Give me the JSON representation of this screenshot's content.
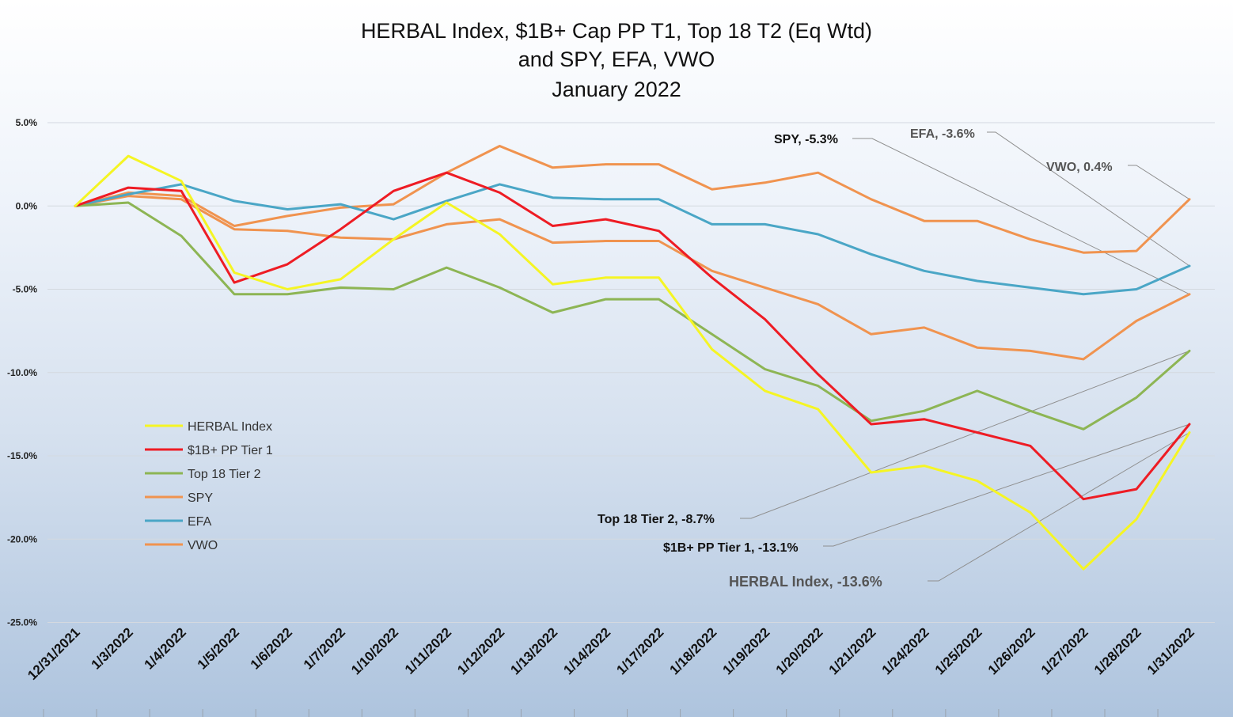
{
  "chart_data": {
    "type": "line",
    "title": [
      "HERBAL Index, $1B+ Cap PP T1, Top 18 T2  (Eq Wtd)",
      "and SPY, EFA, VWO",
      "January 2022"
    ],
    "xlabel": "",
    "ylabel": "",
    "ylim": [
      -25,
      5
    ],
    "yticks": [
      5,
      0,
      -5,
      -10,
      -15,
      -20,
      -25
    ],
    "ytick_labels": [
      "5.0%",
      "0.0%",
      "-5.0%",
      "-10.0%",
      "-15.0%",
      "-20.0%",
      "-25.0%"
    ],
    "grid": "horizontal",
    "legend_position": "center-left",
    "categories": [
      "12/31/2021",
      "1/3/2022",
      "1/4/2022",
      "1/5/2022",
      "1/6/2022",
      "1/7/2022",
      "1/10/2022",
      "1/11/2022",
      "1/12/2022",
      "1/13/2022",
      "1/14/2022",
      "1/17/2022",
      "1/18/2022",
      "1/19/2022",
      "1/20/2022",
      "1/21/2022",
      "1/24/2022",
      "1/25/2022",
      "1/26/2022",
      "1/27/2022",
      "1/28/2022",
      "1/31/2022"
    ],
    "series": [
      {
        "name": "VWO",
        "color": "#f0934f",
        "values": [
          0.0,
          0.8,
          0.6,
          -1.2,
          -0.6,
          -0.1,
          0.1,
          2.0,
          3.6,
          2.3,
          2.5,
          2.5,
          1.0,
          1.4,
          2.0,
          0.4,
          -0.9,
          -0.9,
          -2.0,
          -2.8,
          -2.7,
          0.4
        ]
      },
      {
        "name": "SPY",
        "color": "#f0934f",
        "values": [
          0.0,
          0.6,
          0.4,
          -1.4,
          -1.5,
          -1.9,
          -2.0,
          -1.1,
          -0.8,
          -2.2,
          -2.1,
          -2.1,
          -3.9,
          -4.9,
          -5.9,
          -7.7,
          -7.3,
          -8.5,
          -8.7,
          -9.2,
          -6.9,
          -5.3
        ]
      },
      {
        "name": "EFA",
        "color": "#4aa6c6",
        "values": [
          0.0,
          0.7,
          1.3,
          0.3,
          -0.2,
          0.1,
          -0.8,
          0.3,
          1.3,
          0.5,
          0.4,
          0.4,
          -1.1,
          -1.1,
          -1.7,
          -2.9,
          -3.9,
          -4.5,
          -4.9,
          -5.3,
          -5.0,
          -3.6
        ]
      },
      {
        "name": "Top 18 Tier 2",
        "color": "#8db554",
        "values": [
          0.0,
          0.2,
          -1.8,
          -5.3,
          -5.3,
          -4.9,
          -5.0,
          -3.7,
          -4.9,
          -6.4,
          -5.6,
          -5.6,
          -7.7,
          -9.8,
          -10.8,
          -12.9,
          -12.3,
          -11.1,
          -12.3,
          -13.4,
          -11.5,
          -8.7
        ]
      },
      {
        "name": "$1B+ PP Tier 1",
        "color": "#ee1c24",
        "values": [
          0.0,
          1.1,
          0.9,
          -4.6,
          -3.5,
          -1.4,
          0.9,
          2.0,
          0.8,
          -1.2,
          -0.8,
          -1.5,
          -4.3,
          -6.8,
          -10.1,
          -13.1,
          -12.8,
          -13.6,
          -14.4,
          -17.6,
          -17.0,
          -13.1
        ]
      },
      {
        "name": "HERBAL Index",
        "color": "#f5f524",
        "values": [
          0.0,
          3.0,
          1.5,
          -4.0,
          -5.0,
          -4.4,
          -2.0,
          0.2,
          -1.7,
          -4.7,
          -4.3,
          -4.3,
          -8.6,
          -11.1,
          -12.2,
          -16.0,
          -15.6,
          -16.5,
          -18.4,
          -21.8,
          -18.8,
          -13.6
        ]
      }
    ],
    "legend": [
      {
        "name": "HERBAL Index",
        "color": "#f5f524"
      },
      {
        "name": "$1B+ PP Tier 1",
        "color": "#ee1c24"
      },
      {
        "name": "Top 18 Tier 2",
        "color": "#8db554"
      },
      {
        "name": "SPY",
        "color": "#f0934f"
      },
      {
        "name": "EFA",
        "color": "#4aa6c6"
      },
      {
        "name": "VWO",
        "color": "#f0934f"
      }
    ],
    "annotations": [
      {
        "text": "SPY, -5.3%",
        "series": "SPY"
      },
      {
        "text": "EFA, -3.6%",
        "series": "EFA"
      },
      {
        "text": "VWO, 0.4%",
        "series": "VWO"
      },
      {
        "text": "Top 18 Tier 2, -8.7%",
        "series": "Top 18 Tier 2"
      },
      {
        "text": "$1B+ PP Tier 1, -13.1%",
        "series": "$1B+ PP Tier 1"
      },
      {
        "text": "HERBAL Index, -13.6%",
        "series": "HERBAL Index"
      }
    ]
  }
}
